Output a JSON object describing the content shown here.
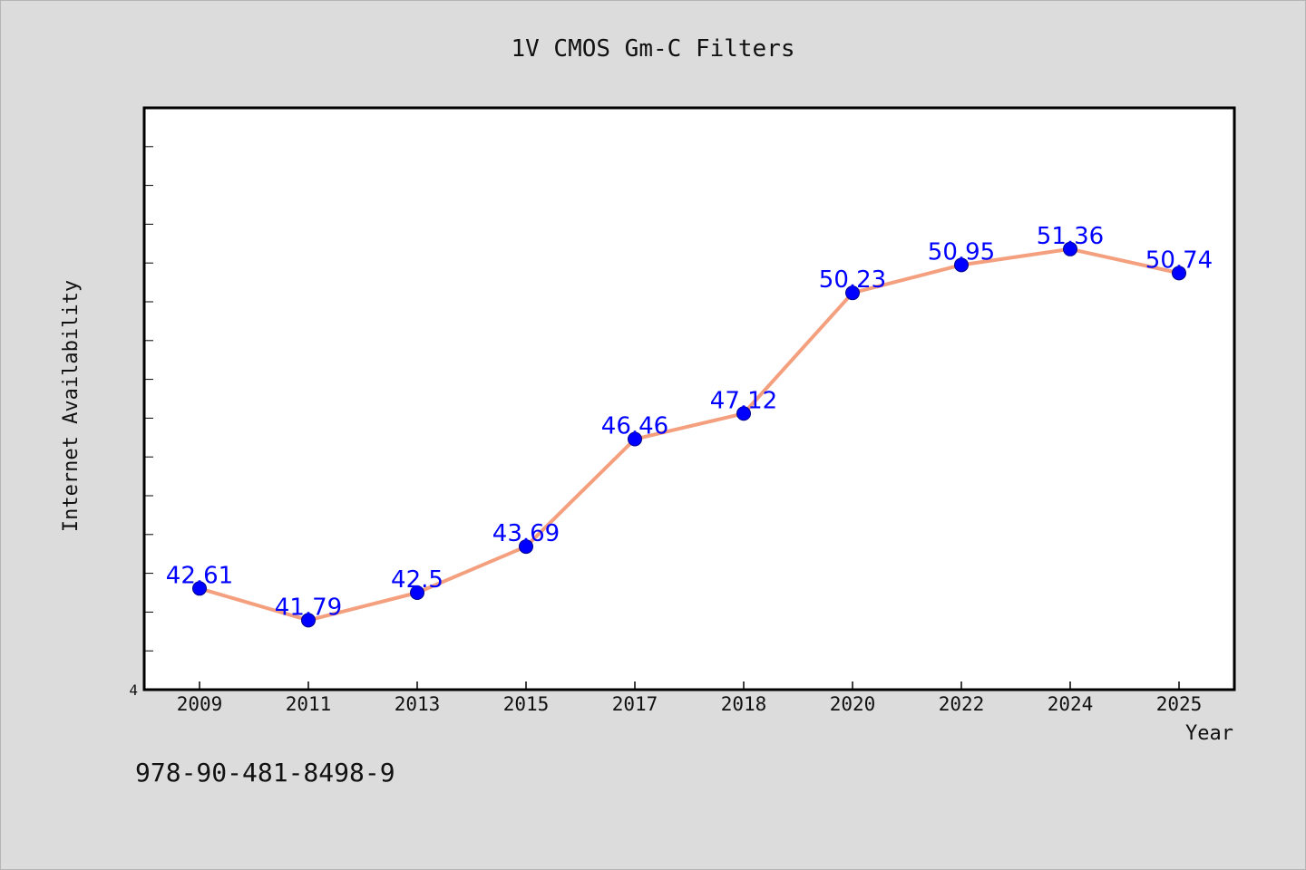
{
  "chart_data": {
    "type": "line",
    "title": "1V CMOS Gm-C Filters",
    "xlabel": "Year",
    "ylabel": "Internet Availability",
    "categories": [
      "2009",
      "2011",
      "2013",
      "2015",
      "2017",
      "2018",
      "2020",
      "2022",
      "2024",
      "2025"
    ],
    "series": [
      {
        "name": "",
        "values": [
          42.61,
          41.79,
          42.5,
          43.69,
          46.46,
          47.12,
          50.23,
          50.95,
          51.36,
          50.74
        ],
        "data_labels": [
          "42.61",
          "41.79",
          "42.5",
          "43.69",
          "46.46",
          "47.12",
          "50.23",
          "50.95",
          "51.36",
          "50.74"
        ]
      }
    ],
    "ylim": [
      40,
      55
    ],
    "y_tick_count": 15,
    "y_tick_label_shown": "4",
    "grid": false,
    "legend": "none",
    "line_color": "#f4a07f",
    "marker_color": "#0000ff",
    "label_color": "#0000ff"
  },
  "footer": {
    "isbn": "978-90-481-8498-9"
  }
}
